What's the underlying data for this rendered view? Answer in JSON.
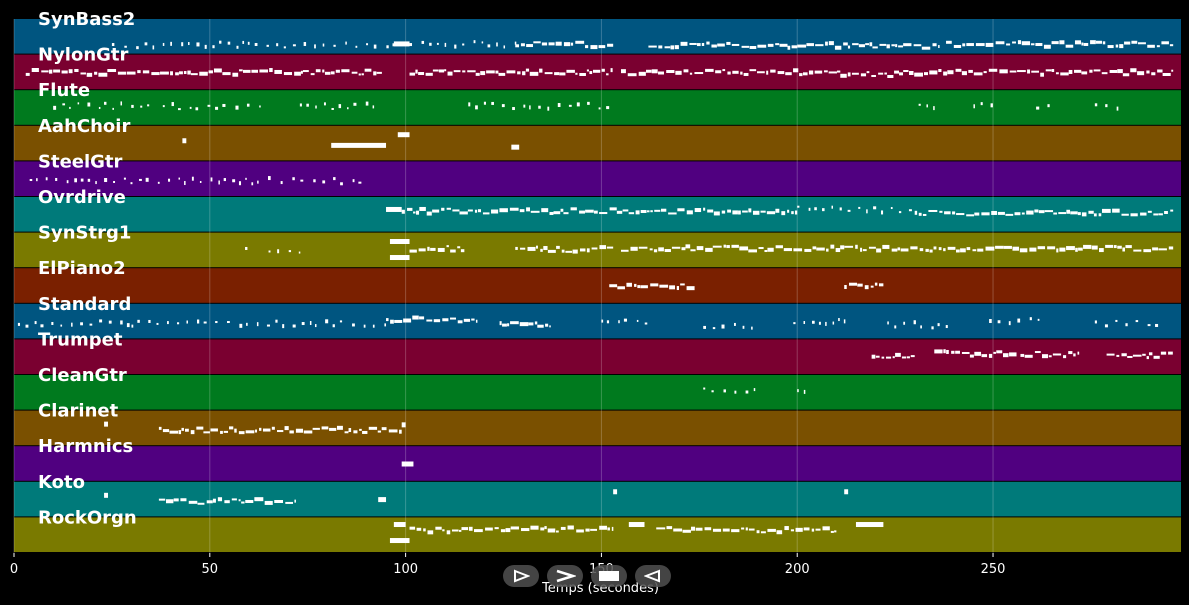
{
  "chart_data": {
    "type": "piano-roll",
    "xlabel": "Temps (secondes)",
    "xlim": [
      0,
      298
    ],
    "xticks": [
      0,
      50,
      100,
      150,
      200,
      250
    ],
    "grid": true,
    "tracks": [
      {
        "name": "SynBass2",
        "color": "#005580",
        "phrases": [
          [
            25,
            38,
            0.75,
            "sparse"
          ],
          [
            38,
            97,
            0.72,
            "sparse"
          ],
          [
            97,
            101,
            0.7,
            "block"
          ],
          [
            101,
            108,
            0.72,
            "sparse"
          ],
          [
            108,
            128,
            0.72,
            "sparse"
          ],
          [
            128,
            153,
            0.72,
            "dense"
          ],
          [
            162,
            200,
            0.74,
            "dense"
          ],
          [
            200,
            225,
            0.74,
            "dense"
          ],
          [
            225,
            236,
            0.78,
            "dense"
          ],
          [
            238,
            263,
            0.72,
            "dense"
          ],
          [
            263,
            296,
            0.72,
            "dense"
          ]
        ]
      },
      {
        "name": "NylonGtr",
        "color": "#7a0030",
        "phrases": [
          [
            3,
            94,
            0.5,
            "dense"
          ],
          [
            101,
            153,
            0.5,
            "dense"
          ],
          [
            155,
            211,
            0.5,
            "dense"
          ],
          [
            211,
            226,
            0.55,
            "dense"
          ],
          [
            226,
            296,
            0.5,
            "dense"
          ]
        ]
      },
      {
        "name": "Flute",
        "color": "#007a1e",
        "phrases": [
          [
            10,
            35,
            0.45,
            "sparse"
          ],
          [
            38,
            63,
            0.45,
            "sparse"
          ],
          [
            73,
            93,
            0.45,
            "sparse"
          ],
          [
            116,
            153,
            0.45,
            "sparse"
          ],
          [
            231,
            235,
            0.45,
            "sparse"
          ],
          [
            245,
            251,
            0.45,
            "sparse"
          ],
          [
            261,
            266,
            0.45,
            "sparse"
          ],
          [
            276,
            282,
            0.45,
            "sparse"
          ]
        ]
      },
      {
        "name": "AahChoir",
        "color": "#7a5000",
        "phrases": [
          [
            43,
            44,
            0.42,
            "block"
          ],
          [
            81,
            95,
            0.55,
            "block"
          ],
          [
            98,
            101,
            0.25,
            "block"
          ],
          [
            127,
            129,
            0.6,
            "block"
          ]
        ]
      },
      {
        "name": "SteelGtr",
        "color": "#500080",
        "phrases": [
          [
            4,
            90,
            0.55,
            "sparse"
          ]
        ]
      },
      {
        "name": "Ovrdrive",
        "color": "#007a7a",
        "phrases": [
          [
            95,
            99,
            0.35,
            "block"
          ],
          [
            99,
            200,
            0.4,
            "dense"
          ],
          [
            200,
            230,
            0.35,
            "sparse"
          ],
          [
            230,
            296,
            0.45,
            "dense"
          ]
        ]
      },
      {
        "name": "SynStrg1",
        "color": "#7a7a00",
        "phrases": [
          [
            59,
            61,
            0.5,
            "sparse"
          ],
          [
            65,
            73,
            0.5,
            "sparse"
          ],
          [
            96,
            101,
            0.25,
            "block"
          ],
          [
            96,
            101,
            0.7,
            "block"
          ],
          [
            101,
            115,
            0.45,
            "dense"
          ],
          [
            128,
            153,
            0.47,
            "dense"
          ],
          [
            155,
            296,
            0.45,
            "dense"
          ]
        ]
      },
      {
        "name": "ElPiano2",
        "color": "#7a2000",
        "phrases": [
          [
            152,
            174,
            0.5,
            "dense"
          ],
          [
            212,
            222,
            0.5,
            "dense"
          ]
        ]
      },
      {
        "name": "Standard",
        "color": "#005580",
        "phrases": [
          [
            1,
            30,
            0.55,
            "sparse"
          ],
          [
            30,
            95,
            0.55,
            "sparse"
          ],
          [
            95,
            118,
            0.45,
            "dense"
          ],
          [
            124,
            137,
            0.6,
            "dense"
          ],
          [
            150,
            163,
            0.5,
            "sparse"
          ],
          [
            176,
            190,
            0.6,
            "sparse"
          ],
          [
            199,
            212,
            0.5,
            "sparse"
          ],
          [
            223,
            240,
            0.6,
            "sparse"
          ],
          [
            249,
            262,
            0.5,
            "sparse"
          ],
          [
            276,
            293,
            0.55,
            "sparse"
          ]
        ]
      },
      {
        "name": "Trumpet",
        "color": "#7a0030",
        "phrases": [
          [
            219,
            230,
            0.45,
            "dense"
          ],
          [
            235,
            256,
            0.4,
            "dense"
          ],
          [
            257,
            272,
            0.42,
            "dense"
          ],
          [
            279,
            296,
            0.45,
            "dense"
          ]
        ]
      },
      {
        "name": "CleanGtr",
        "color": "#007a1e",
        "phrases": [
          [
            176,
            189,
            0.42,
            "sparse"
          ],
          [
            200,
            202,
            0.42,
            "sparse"
          ]
        ]
      },
      {
        "name": "Clarinet",
        "color": "#7a5000",
        "phrases": [
          [
            23,
            24,
            0.38,
            "block"
          ],
          [
            37,
            99,
            0.55,
            "dense"
          ],
          [
            99,
            100,
            0.4,
            "block"
          ]
        ]
      },
      {
        "name": "Harmnics",
        "color": "#500080",
        "phrases": [
          [
            99,
            102,
            0.5,
            "block"
          ]
        ]
      },
      {
        "name": "Koto",
        "color": "#007a7a",
        "phrases": [
          [
            23,
            24,
            0.38,
            "block"
          ],
          [
            37,
            72,
            0.55,
            "dense"
          ],
          [
            93,
            95,
            0.5,
            "block"
          ],
          [
            153,
            154,
            0.28,
            "block"
          ],
          [
            212,
            213,
            0.28,
            "block"
          ]
        ]
      },
      {
        "name": "RockOrgn",
        "color": "#7a7a00",
        "phrases": [
          [
            97,
            100,
            0.2,
            "block"
          ],
          [
            96,
            101,
            0.65,
            "block"
          ],
          [
            101,
            153,
            0.35,
            "dense"
          ],
          [
            157,
            161,
            0.2,
            "block"
          ],
          [
            164,
            210,
            0.35,
            "dense"
          ],
          [
            215,
            222,
            0.2,
            "block"
          ]
        ]
      }
    ]
  },
  "controls": {
    "play_icon": "play-icon",
    "forward_icon": "forward-icon",
    "stop_icon": "stop-icon",
    "rewind_icon": "rewind-icon"
  }
}
